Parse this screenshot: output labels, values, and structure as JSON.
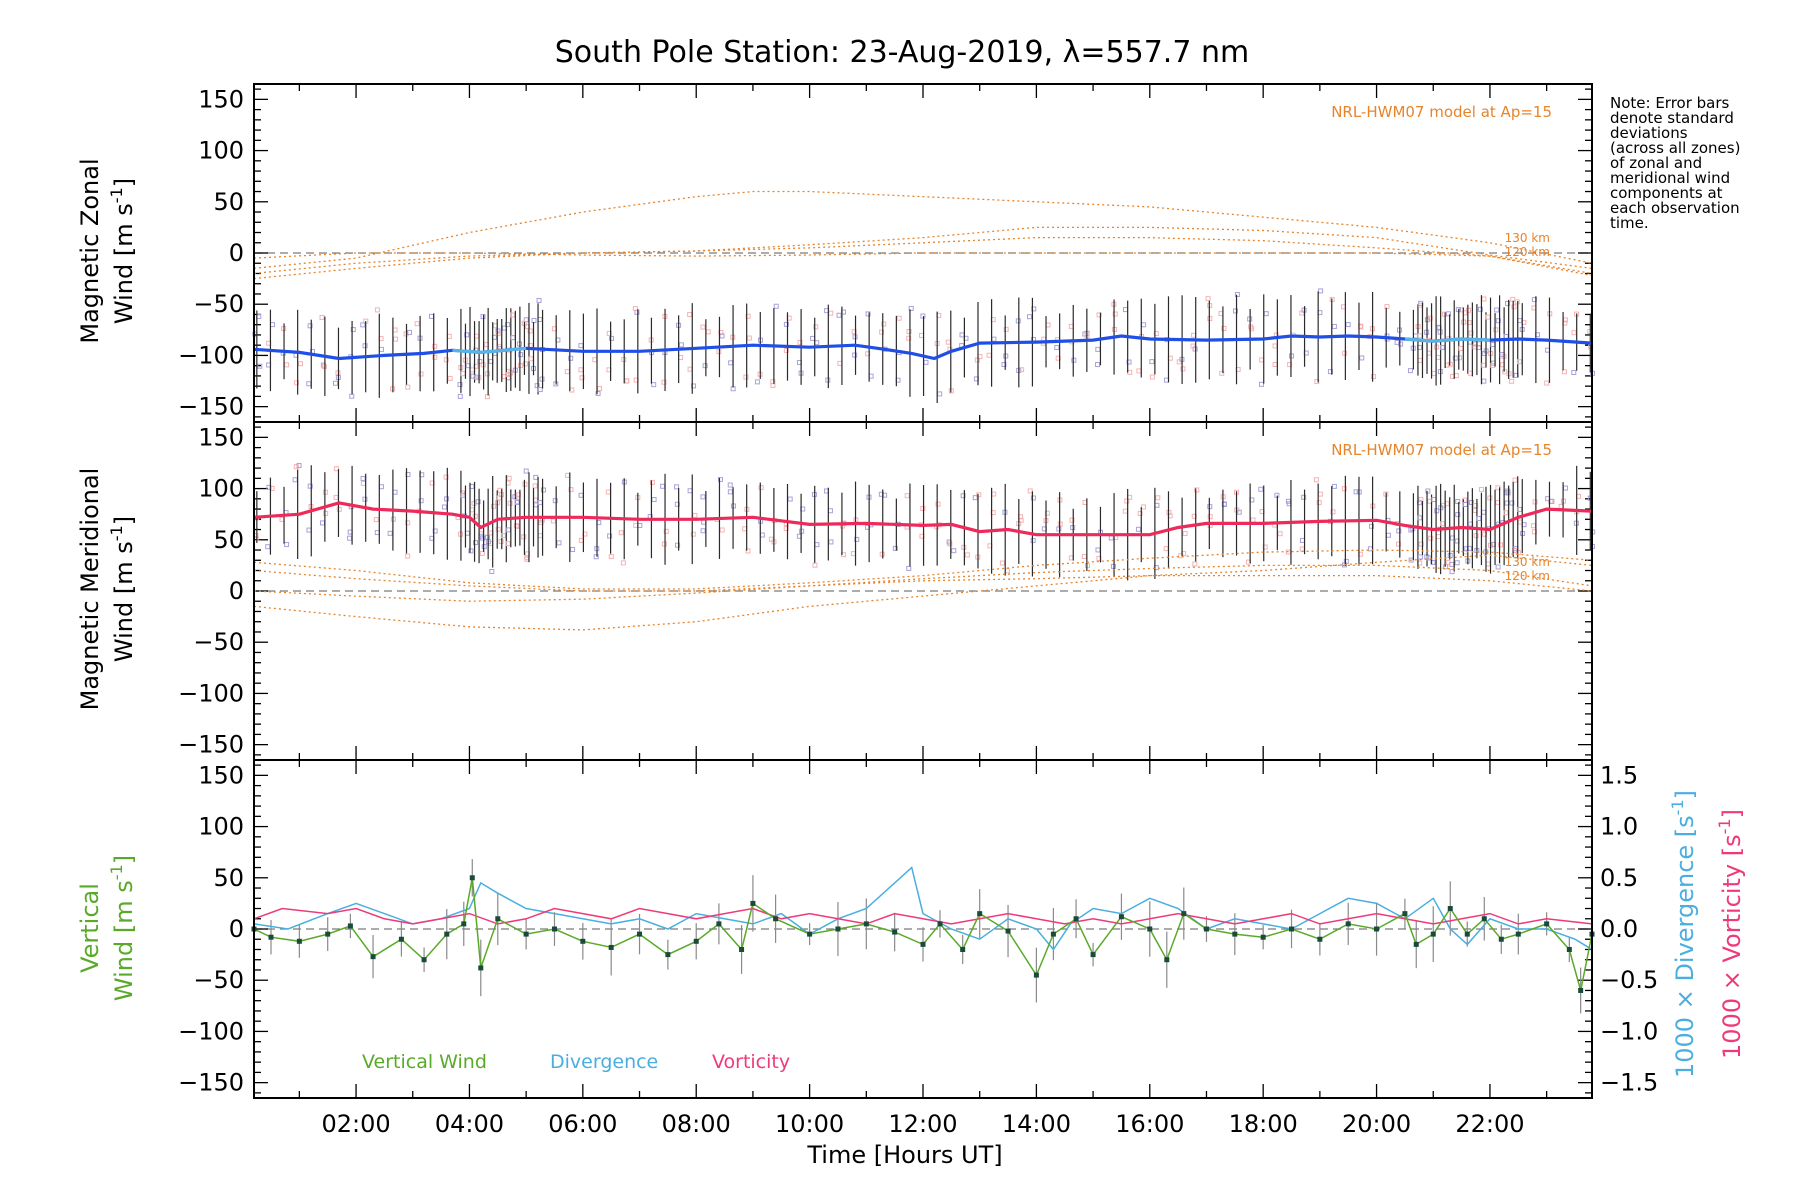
{
  "chart_data": {
    "type": "line",
    "title": "South Pole Station: 23-Aug-2019, λ=557.7 nm",
    "xlabel": "Time [Hours UT]",
    "x_tick_labels": [
      "02:00",
      "04:00",
      "06:00",
      "08:00",
      "10:00",
      "12:00",
      "14:00",
      "16:00",
      "18:00",
      "20:00",
      "22:00"
    ],
    "xlim": [
      0.2,
      23.8
    ],
    "note": [
      "Note: Error bars",
      "denote standard",
      "deviations",
      "(across all zones)",
      "of zonal and",
      "meridional wind",
      "components at",
      "each observation",
      "time."
    ],
    "colors": {
      "zonal": "#1f4fe6",
      "zonal_alt": "#56b4e6",
      "meridional": "#ee2a5a",
      "model": "#e8842a",
      "vertical": "#5aaa2a",
      "divergence": "#4aaee0",
      "vorticity": "#ee3a7a",
      "scatter": "#a7a3d9",
      "pink_scatter": "#f5b3b3",
      "errorbar": "#2b2b2b",
      "dash": "#7a7a7a"
    },
    "panels": [
      {
        "id": "zonal",
        "ylabel_line1": "Magnetic Zonal",
        "ylabel_line2_pre": "Wind [m s",
        "ylabel_sup": "-1",
        "ylabel_line2_post": "]",
        "ylim": [
          -165,
          165
        ],
        "yticks": [
          -150,
          -100,
          -50,
          0,
          50,
          100,
          150
        ],
        "ytick_labels": [
          "−150",
          "−100",
          "−50",
          "0",
          "50",
          "100",
          "150"
        ],
        "model_label": "NRL-HWM07 model at Ap=15",
        "alt_labels": [
          "130 km",
          "120 km"
        ],
        "series": [
          {
            "name": "Zonal wind",
            "x": [
              0.2,
              1.0,
              1.7,
              2.5,
              3.2,
              3.7,
              4.2,
              5.0,
              6.0,
              7.0,
              8.0,
              9.0,
              10.0,
              10.8,
              11.2,
              11.8,
              12.2,
              12.5,
              13.0,
              14.0,
              15.0,
              15.5,
              16.0,
              17.0,
              18.0,
              18.5,
              19.0,
              19.5,
              20.0,
              20.5,
              21.0,
              21.5,
              22.0,
              22.5,
              23.0,
              23.8
            ],
            "y": [
              -94,
              -97,
              -103,
              -100,
              -98,
              -95,
              -97,
              -93,
              -96,
              -96,
              -93,
              -90,
              -92,
              -90,
              -93,
              -98,
              -103,
              -96,
              -88,
              -87,
              -85,
              -81,
              -84,
              -85,
              -84,
              -81,
              -82,
              -81,
              -82,
              -84,
              -86,
              -84,
              -85,
              -84,
              -85,
              -88
            ]
          },
          {
            "name": "Model 130 km a",
            "x": [
              0.2,
              2,
              4,
              6,
              8,
              9,
              10,
              12,
              14,
              16,
              18,
              20,
              22,
              23.8
            ],
            "y": [
              -15,
              -5,
              20,
              40,
              55,
              60,
              60,
              55,
              50,
              45,
              35,
              25,
              10,
              -10
            ]
          },
          {
            "name": "Model 130 km b",
            "x": [
              0.2,
              2,
              4,
              6,
              8,
              10,
              12,
              14,
              16,
              18,
              20,
              22,
              23.8
            ],
            "y": [
              -25,
              -15,
              -5,
              0,
              2,
              8,
              15,
              25,
              25,
              22,
              15,
              -2,
              -15
            ]
          },
          {
            "name": "Model 120 km a",
            "x": [
              0.2,
              2,
              4,
              6,
              8,
              10,
              12,
              14,
              16,
              18,
              20,
              22,
              23.8
            ],
            "y": [
              -5,
              0,
              0,
              -2,
              -3,
              -2,
              0,
              0,
              0,
              0,
              0,
              -3,
              -20
            ]
          },
          {
            "name": "Model 120 km b",
            "x": [
              0.2,
              2,
              4,
              6,
              8,
              10,
              12,
              14,
              16,
              18,
              20,
              22,
              23.8
            ],
            "y": [
              -20,
              -10,
              -3,
              0,
              2,
              5,
              10,
              15,
              15,
              12,
              5,
              -3,
              -22
            ]
          }
        ]
      },
      {
        "id": "meridional",
        "ylabel_line1": "Magnetic Meridional",
        "ylabel_line2_pre": "Wind [m s",
        "ylabel_sup": "-1",
        "ylabel_line2_post": "]",
        "ylim": [
          -165,
          165
        ],
        "yticks": [
          -150,
          -100,
          -50,
          0,
          50,
          100,
          150
        ],
        "ytick_labels": [
          "−150",
          "−100",
          "−50",
          "0",
          "50",
          "100",
          "150"
        ],
        "model_label": "NRL-HWM07 model at Ap=15",
        "alt_labels": [
          "130 km",
          "120 km"
        ],
        "series": [
          {
            "name": "Meridional wind",
            "x": [
              0.2,
              1.0,
              1.7,
              2.3,
              3.0,
              3.7,
              4.0,
              4.2,
              4.5,
              5.0,
              6.0,
              7.0,
              8.0,
              9.0,
              10.0,
              11.0,
              12.0,
              12.5,
              13.0,
              13.5,
              14.0,
              15.0,
              16.0,
              16.5,
              17.0,
              18.0,
              19.0,
              20.0,
              20.5,
              21.0,
              21.5,
              22.0,
              22.5,
              23.0,
              23.8
            ],
            "y": [
              72,
              75,
              86,
              80,
              78,
              75,
              72,
              62,
              70,
              72,
              72,
              70,
              70,
              72,
              65,
              66,
              64,
              65,
              58,
              60,
              55,
              55,
              55,
              62,
              66,
              66,
              68,
              69,
              64,
              60,
              62,
              60,
              72,
              80,
              78
            ]
          },
          {
            "name": "Model 130 km a",
            "x": [
              0.2,
              2,
              4,
              6,
              8,
              10,
              12,
              14,
              16,
              18,
              20,
              22,
              23.8
            ],
            "y": [
              28,
              20,
              8,
              2,
              2,
              8,
              15,
              25,
              32,
              38,
              40,
              38,
              30
            ]
          },
          {
            "name": "Model 130 km b",
            "x": [
              0.2,
              2,
              4,
              6,
              8,
              10,
              12,
              14,
              16,
              18,
              20,
              22,
              23.8
            ],
            "y": [
              -15,
              -25,
              -35,
              -38,
              -30,
              -15,
              -5,
              5,
              15,
              20,
              28,
              35,
              25
            ]
          },
          {
            "name": "Model 120 km a",
            "x": [
              0.2,
              2,
              4,
              6,
              8,
              10,
              12,
              14,
              16,
              18,
              20,
              22,
              23.8
            ],
            "y": [
              20,
              12,
              5,
              0,
              0,
              5,
              10,
              12,
              15,
              15,
              15,
              10,
              0
            ]
          },
          {
            "name": "Model 120 km b",
            "x": [
              0.2,
              2,
              4,
              6,
              8,
              10,
              12,
              14,
              16,
              18,
              20,
              22,
              23.8
            ],
            "y": [
              0,
              -5,
              -10,
              -8,
              -2,
              5,
              12,
              18,
              22,
              25,
              25,
              20,
              5
            ]
          }
        ]
      },
      {
        "id": "vertical",
        "ylabel_line1": "Vertical",
        "ylabel_line2_pre": "Wind [m s",
        "ylabel_sup": "-1",
        "ylabel_line2_post": "]",
        "ylim": [
          -165,
          165
        ],
        "yticks": [
          -150,
          -100,
          -50,
          0,
          50,
          100,
          150
        ],
        "ytick_labels": [
          "−150",
          "−100",
          "−50",
          "0",
          "50",
          "100",
          "150"
        ],
        "right_ylabel_div": "1000 × Divergence [s",
        "right_ylabel_vor": "1000 × Vorticity [s",
        "right_ylabel_sup": "-1",
        "right_ylabel_post": "]",
        "right_ylim": [
          -1.65,
          1.65
        ],
        "right_yticks": [
          -1.5,
          -1.0,
          -0.5,
          0.0,
          0.5,
          1.0,
          1.5
        ],
        "right_ytick_labels": [
          "−1.5",
          "−1.0",
          "−0.5",
          "0.0",
          "0.5",
          "1.0",
          "1.5"
        ],
        "legend": [
          "Vertical Wind",
          "Divergence",
          "Vorticity"
        ],
        "series": [
          {
            "name": "Vertical Wind",
            "x": [
              0.2,
              0.5,
              1.0,
              1.5,
              1.9,
              2.3,
              2.8,
              3.2,
              3.6,
              3.9,
              4.05,
              4.2,
              4.5,
              5.0,
              5.5,
              6.0,
              6.5,
              7.0,
              7.5,
              8.0,
              8.4,
              8.8,
              9.0,
              9.4,
              10.0,
              10.5,
              11.0,
              11.5,
              12.0,
              12.3,
              12.7,
              13.0,
              13.5,
              14.0,
              14.3,
              14.7,
              15.0,
              15.5,
              16.0,
              16.3,
              16.6,
              17.0,
              17.5,
              18.0,
              18.5,
              19.0,
              19.5,
              20.0,
              20.5,
              20.7,
              21.0,
              21.3,
              21.6,
              21.9,
              22.2,
              22.5,
              23.0,
              23.4,
              23.6,
              23.8
            ],
            "y": [
              0,
              -8,
              -12,
              -5,
              3,
              -27,
              -10,
              -30,
              -5,
              5,
              50,
              -38,
              10,
              -5,
              0,
              -12,
              -18,
              -5,
              -25,
              -12,
              5,
              -20,
              25,
              10,
              -5,
              0,
              5,
              -3,
              -15,
              5,
              -20,
              15,
              -2,
              -45,
              -5,
              10,
              -25,
              12,
              0,
              -30,
              15,
              0,
              -5,
              -8,
              0,
              -10,
              5,
              0,
              15,
              -15,
              -5,
              20,
              -5,
              10,
              -10,
              -5,
              5,
              -20,
              -60,
              -5
            ]
          },
          {
            "name": "Divergence",
            "x": [
              0.2,
              0.8,
              1.5,
              2.0,
              2.5,
              3.0,
              3.5,
              4.0,
              4.2,
              4.5,
              5.0,
              5.5,
              6.0,
              6.5,
              7.0,
              7.5,
              8.0,
              8.5,
              9.0,
              9.5,
              10.0,
              10.5,
              11.0,
              11.5,
              11.8,
              12.0,
              12.5,
              13.0,
              13.5,
              14.0,
              14.3,
              14.6,
              15.0,
              15.5,
              16.0,
              16.5,
              17.0,
              17.5,
              18.0,
              18.5,
              19.0,
              19.5,
              20.0,
              20.5,
              21.0,
              21.3,
              21.6,
              22.0,
              22.5,
              23.0,
              23.5,
              23.8
            ],
            "y": [
              0.05,
              0.0,
              0.15,
              0.25,
              0.15,
              0.05,
              0.1,
              0.2,
              0.45,
              0.35,
              0.2,
              0.15,
              0.1,
              0.05,
              0.1,
              0.0,
              0.15,
              0.1,
              0.05,
              0.15,
              -0.05,
              0.1,
              0.2,
              0.45,
              0.6,
              0.15,
              0.0,
              -0.1,
              0.1,
              0.0,
              -0.2,
              0.05,
              0.2,
              0.15,
              0.3,
              0.2,
              0.0,
              0.1,
              0.05,
              0.0,
              0.15,
              0.3,
              0.25,
              0.1,
              0.3,
              0.0,
              -0.15,
              0.1,
              0.0,
              0.0,
              -0.1,
              -0.2
            ]
          },
          {
            "name": "Vorticity",
            "x": [
              0.2,
              0.7,
              1.5,
              2.0,
              2.5,
              3.0,
              3.5,
              4.0,
              4.5,
              5.0,
              5.5,
              6.0,
              6.5,
              7.0,
              7.5,
              8.0,
              8.5,
              9.0,
              9.5,
              10.0,
              10.5,
              11.0,
              11.5,
              12.0,
              12.5,
              13.0,
              13.5,
              14.0,
              14.5,
              15.0,
              15.5,
              16.0,
              16.5,
              17.0,
              17.5,
              18.0,
              18.5,
              19.0,
              19.5,
              20.0,
              20.5,
              21.0,
              21.5,
              22.0,
              22.5,
              23.0,
              23.8
            ],
            "y": [
              0.1,
              0.2,
              0.15,
              0.2,
              0.1,
              0.05,
              0.1,
              0.15,
              0.05,
              0.1,
              0.2,
              0.15,
              0.1,
              0.2,
              0.15,
              0.1,
              0.15,
              0.2,
              0.1,
              0.15,
              0.1,
              0.05,
              0.15,
              0.1,
              0.05,
              0.1,
              0.15,
              0.1,
              0.05,
              0.1,
              0.05,
              0.1,
              0.15,
              0.1,
              0.05,
              0.1,
              0.15,
              0.05,
              0.1,
              0.15,
              0.1,
              0.05,
              0.1,
              0.15,
              0.05,
              0.1,
              0.05
            ]
          }
        ]
      }
    ]
  }
}
